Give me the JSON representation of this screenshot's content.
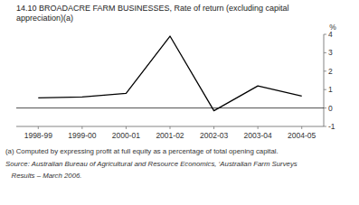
{
  "chart_data": {
    "type": "line",
    "title": "14.10  BROADACRE FARM BUSINESSES, Rate of return (excluding capital",
    "subtitle": "appreciation)(a)",
    "y_label": "%",
    "categories": [
      "1998-99",
      "1999-00",
      "2000-01",
      "2001-02",
      "2002-03",
      "2003-04",
      "2004-05"
    ],
    "values": [
      0.55,
      0.6,
      0.8,
      3.9,
      -0.15,
      1.2,
      0.65
    ],
    "color": "#000000",
    "ylim": [
      -1,
      4
    ],
    "yticks": [
      -1,
      0,
      1,
      2,
      3,
      4
    ],
    "annotations": [
      "(a) Computed by expressing profit at full equity as a percentage of total opening capital.",
      "Source: Australian Bureau of Agricultural and Resource Economics, ‘Australian Farm Surveys",
      "   Results – March 2006."
    ]
  }
}
